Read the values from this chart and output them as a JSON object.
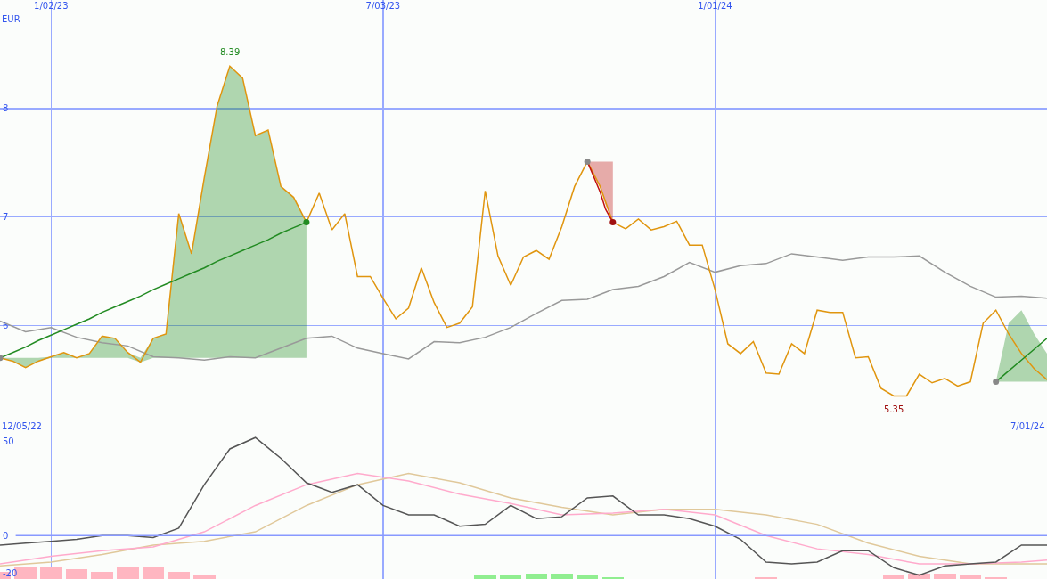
{
  "chart_data": [
    {
      "type": "line",
      "ylabel": "EUR",
      "xlim": [
        "2022-12-05",
        "2024-07-01"
      ],
      "ylim": [
        5.0,
        9.0
      ],
      "xticks": [
        {
          "value": "2023-01-02",
          "label": "1/02/23"
        },
        {
          "value": "2023-07-03",
          "label": "7/03/23"
        },
        {
          "value": "2024-01-01",
          "label": "1/01/24"
        }
      ],
      "yticks": [
        6,
        7,
        8
      ],
      "grid": true,
      "legend": false,
      "annotations": [
        {
          "text": "8.39",
          "x": "2023-04-10",
          "y": 8.39
        },
        {
          "text": "5.35",
          "x": "2024-04-08",
          "y": 5.35
        },
        "12/05/22",
        "7/01/24"
      ],
      "series": [
        {
          "color": "#999999",
          "x": [
            "2022-12-05",
            "2022-12-19",
            "2023-01-02",
            "2023-01-16",
            "2023-01-30",
            "2023-02-13",
            "2023-02-27",
            "2023-03-13",
            "2023-03-27",
            "2023-04-10",
            "2023-04-24",
            "2023-05-08",
            "2023-05-22",
            "2023-06-05",
            "2023-06-19",
            "2023-07-03",
            "2023-07-17",
            "2023-07-31",
            "2023-08-14",
            "2023-08-28",
            "2023-09-11",
            "2023-09-25",
            "2023-10-09",
            "2023-10-23",
            "2023-11-06",
            "2023-11-20",
            "2023-12-04",
            "2023-12-18",
            "2024-01-01",
            "2024-01-15",
            "2024-01-29",
            "2024-02-12",
            "2024-02-26",
            "2024-03-11",
            "2024-03-25",
            "2024-04-08",
            "2024-04-22",
            "2024-05-06",
            "2024-05-20",
            "2024-06-03",
            "2024-06-17",
            "2024-07-01"
          ],
          "values": [
            6.04,
            5.94,
            5.98,
            5.89,
            5.84,
            5.81,
            5.71,
            5.7,
            5.68,
            5.71,
            5.7,
            5.79,
            5.88,
            5.9,
            5.79,
            5.74,
            5.69,
            5.85,
            5.84,
            5.89,
            5.98,
            6.11,
            6.23,
            6.24,
            6.33,
            6.36,
            6.45,
            6.58,
            6.49,
            6.55,
            6.57,
            6.66,
            6.63,
            6.6,
            6.63,
            6.63,
            6.64,
            6.49,
            6.36,
            6.26,
            6.27,
            6.25
          ]
        },
        {
          "color": "#e0950e",
          "x": [
            "2022-12-05",
            "2022-12-12",
            "2022-12-19",
            "2022-12-26",
            "2023-01-02",
            "2023-01-09",
            "2023-01-16",
            "2023-01-23",
            "2023-01-30",
            "2023-02-06",
            "2023-02-13",
            "2023-02-20",
            "2023-02-27",
            "2023-03-06",
            "2023-03-13",
            "2023-03-20",
            "2023-03-27",
            "2023-04-03",
            "2023-04-10",
            "2023-04-17",
            "2023-04-24",
            "2023-05-01",
            "2023-05-08",
            "2023-05-15",
            "2023-05-22",
            "2023-05-29",
            "2023-06-05",
            "2023-06-12",
            "2023-06-19",
            "2023-06-26",
            "2023-07-03",
            "2023-07-10",
            "2023-07-17",
            "2023-07-24",
            "2023-07-31",
            "2023-08-07",
            "2023-08-14",
            "2023-08-21",
            "2023-08-28",
            "2023-09-04",
            "2023-09-11",
            "2023-09-18",
            "2023-09-25",
            "2023-10-02",
            "2023-10-09",
            "2023-10-16",
            "2023-10-23",
            "2023-10-30",
            "2023-11-06",
            "2023-11-13",
            "2023-11-20",
            "2023-11-27",
            "2023-12-04",
            "2023-12-11",
            "2023-12-18",
            "2023-12-25",
            "2024-01-01",
            "2024-01-08",
            "2024-01-15",
            "2024-01-22",
            "2024-01-29",
            "2024-02-05",
            "2024-02-12",
            "2024-02-19",
            "2024-02-26",
            "2024-03-04",
            "2024-03-11",
            "2024-03-18",
            "2024-03-25",
            "2024-04-01",
            "2024-04-08",
            "2024-04-15",
            "2024-04-22",
            "2024-04-29",
            "2024-05-06",
            "2024-05-13",
            "2024-05-20",
            "2024-05-27",
            "2024-06-03",
            "2024-06-10",
            "2024-06-17",
            "2024-06-24",
            "2024-07-01"
          ],
          "values": [
            5.7,
            5.67,
            5.61,
            5.67,
            5.71,
            5.75,
            5.7,
            5.74,
            5.9,
            5.88,
            5.75,
            5.66,
            5.88,
            5.92,
            7.03,
            6.66,
            7.36,
            8.02,
            8.39,
            8.28,
            7.75,
            7.8,
            7.28,
            7.18,
            6.95,
            7.22,
            6.88,
            7.03,
            6.45,
            6.45,
            6.25,
            6.06,
            6.16,
            6.53,
            6.21,
            5.98,
            6.02,
            6.17,
            7.24,
            6.64,
            6.37,
            6.63,
            6.69,
            6.61,
            6.91,
            7.28,
            7.51,
            7.28,
            6.95,
            6.89,
            6.98,
            6.88,
            6.91,
            6.96,
            6.74,
            6.74,
            6.33,
            5.83,
            5.74,
            5.85,
            5.56,
            5.55,
            5.83,
            5.74,
            6.14,
            6.12,
            6.12,
            5.7,
            5.71,
            5.42,
            5.35,
            5.35,
            5.55,
            5.47,
            5.51,
            5.44,
            5.48,
            6.02,
            6.14,
            5.92,
            5.74,
            5.6,
            5.5
          ]
        },
        {
          "color": "#228b22",
          "x": [
            "2022-12-05",
            "2022-12-12",
            "2022-12-19",
            "2022-12-26",
            "2023-01-02",
            "2023-01-09",
            "2023-01-16",
            "2023-01-23",
            "2023-01-30",
            "2023-02-06",
            "2023-02-13",
            "2023-02-20",
            "2023-02-27",
            "2023-03-06",
            "2023-03-13",
            "2023-03-20",
            "2023-03-27",
            "2023-04-03",
            "2023-04-10",
            "2023-04-17",
            "2023-04-24",
            "2023-05-01",
            "2023-05-08",
            "2023-05-15",
            "2023-05-22"
          ],
          "values": [
            5.7,
            5.75,
            5.8,
            5.86,
            5.91,
            5.96,
            6.01,
            6.06,
            6.12,
            6.17,
            6.22,
            6.27,
            6.33,
            6.38,
            6.43,
            6.48,
            6.53,
            6.59,
            6.64,
            6.69,
            6.74,
            6.79,
            6.85,
            6.9,
            6.95
          ],
          "lower": [
            5.7,
            5.67,
            5.61,
            5.67,
            5.7,
            5.7,
            5.7,
            5.7,
            5.7,
            5.7,
            5.7,
            5.66,
            5.7,
            5.7,
            5.7,
            5.7,
            5.7,
            5.7,
            5.7,
            5.7,
            5.7,
            5.7,
            5.7,
            5.7,
            5.7
          ],
          "upper": [
            5.7,
            5.7,
            5.7,
            5.7,
            5.71,
            5.75,
            5.7,
            5.74,
            5.9,
            5.88,
            5.75,
            5.7,
            5.88,
            5.92,
            7.03,
            6.66,
            7.36,
            8.02,
            8.39,
            8.28,
            7.75,
            7.8,
            7.28,
            7.18,
            6.95
          ]
        },
        {
          "color": "#c01010",
          "x": [
            "2023-10-23",
            "2023-10-26",
            "2023-10-30",
            "2023-11-02",
            "2023-11-06"
          ],
          "values": [
            7.51,
            7.39,
            7.23,
            7.07,
            6.95
          ],
          "lower": [
            7.51,
            7.41,
            7.28,
            7.11,
            6.95
          ],
          "upper": [
            7.51,
            7.51,
            7.51,
            7.51,
            7.51
          ]
        },
        {
          "color": "#228b22",
          "x": [
            "2024-06-03",
            "2024-06-10",
            "2024-06-17",
            "2024-06-24",
            "2024-07-01"
          ],
          "values": [
            5.48,
            5.58,
            5.68,
            5.78,
            5.88
          ],
          "lower": [
            5.48,
            5.48,
            5.48,
            5.48,
            5.48
          ],
          "upper": [
            5.48,
            6.02,
            6.14,
            5.92,
            5.74
          ]
        },
        {
          "type": "scatter",
          "marker": "circle",
          "x": [
            "2022-12-05",
            "2023-05-22",
            "2023-10-23",
            "2023-11-06",
            "2024-06-03"
          ],
          "values": [
            5.7,
            6.95,
            7.51,
            6.95,
            5.48
          ],
          "colors": [
            "#888888",
            "#228b22",
            "#888888",
            "#a01010",
            "#888888"
          ]
        }
      ]
    },
    {
      "type": "line",
      "xlim": [
        "2022-12-05",
        "2024-07-01"
      ],
      "ylim": [
        -23,
        54
      ],
      "xticks": [
        {
          "value": "2023-01-02",
          "label": null
        },
        {
          "value": "2023-07-03",
          "label": null
        },
        {
          "value": "2024-01-01",
          "label": null
        }
      ],
      "yticks": [
        -20,
        0,
        50
      ],
      "grid": "x",
      "legend": false,
      "tick_labels": "y",
      "ref_lines": [
        {
          "axis": "y",
          "value": 0,
          "color": "#8899ff"
        }
      ],
      "series": [
        {
          "type": "bar",
          "x": [
            "2022-12-05",
            "2022-12-19",
            "2023-01-02",
            "2023-01-16",
            "2023-01-30",
            "2023-02-13",
            "2023-02-27",
            "2023-03-13",
            "2023-03-27",
            "2023-08-28",
            "2023-09-11",
            "2023-09-25",
            "2023-10-09",
            "2023-10-23",
            "2023-11-06",
            "2024-01-29",
            "2024-04-08",
            "2024-04-22",
            "2024-05-06",
            "2024-05-20",
            "2024-06-03"
          ],
          "values": [
            4,
            6,
            6,
            5,
            4,
            6,
            6,
            4,
            2,
            2,
            2,
            3,
            3,
            2,
            1,
            1,
            2,
            3,
            3,
            2,
            1
          ],
          "base": [
            -23,
            -23,
            -23,
            -23,
            -23,
            -23,
            -23,
            -23,
            -23,
            -23,
            -23,
            -23,
            -23,
            -23,
            -23,
            -23,
            -23,
            -23,
            -23,
            -23,
            -23
          ],
          "colors": [
            "#ffb6c1",
            "#ffb6c1",
            "#ffb6c1",
            "#ffb6c1",
            "#ffb6c1",
            "#ffb6c1",
            "#ffb6c1",
            "#ffb6c1",
            "#ffb6c1",
            "#90ee90",
            "#90ee90",
            "#90ee90",
            "#90ee90",
            "#90ee90",
            "#90ee90",
            "#ffb6c1",
            "#ffb6c1",
            "#ffb6c1",
            "#ffb6c1",
            "#ffb6c1",
            "#ffb6c1"
          ]
        },
        {
          "color": "#e0c89a",
          "x": [
            "2022-12-05",
            "2023-01-02",
            "2023-01-30",
            "2023-02-27",
            "2023-03-27",
            "2023-04-24",
            "2023-05-22",
            "2023-06-19",
            "2023-07-17",
            "2023-08-14",
            "2023-09-11",
            "2023-10-09",
            "2023-11-06",
            "2023-12-04",
            "2024-01-01",
            "2024-01-29",
            "2024-02-26",
            "2024-03-25",
            "2024-04-22",
            "2024-05-20",
            "2024-06-17",
            "2024-07-01"
          ],
          "values": [
            -16,
            -14,
            -10,
            -5,
            -3,
            2,
            16,
            27,
            33,
            28,
            20,
            15,
            11,
            14,
            14,
            11,
            6,
            -4,
            -11,
            -15,
            -15,
            -15
          ]
        },
        {
          "color": "#ffaacc",
          "x": [
            "2022-12-05",
            "2023-01-02",
            "2023-01-30",
            "2023-02-27",
            "2023-03-27",
            "2023-04-24",
            "2023-05-22",
            "2023-06-19",
            "2023-07-17",
            "2023-08-14",
            "2023-09-11",
            "2023-10-09",
            "2023-11-06",
            "2023-12-04",
            "2024-01-01",
            "2024-01-29",
            "2024-02-26",
            "2024-03-25",
            "2024-04-22",
            "2024-05-20",
            "2024-06-17",
            "2024-07-01"
          ],
          "values": [
            -15,
            -11,
            -8,
            -6,
            2,
            16,
            27,
            33,
            29,
            22,
            17,
            11,
            12,
            14,
            11,
            0,
            -7,
            -10,
            -15,
            -15,
            -14,
            -13
          ]
        },
        {
          "color": "#555555",
          "x": [
            "2022-12-05",
            "2022-12-19",
            "2023-01-02",
            "2023-01-16",
            "2023-01-30",
            "2023-02-13",
            "2023-02-27",
            "2023-03-13",
            "2023-03-27",
            "2023-04-10",
            "2023-04-24",
            "2023-05-08",
            "2023-05-22",
            "2023-06-05",
            "2023-06-19",
            "2023-07-03",
            "2023-07-17",
            "2023-07-31",
            "2023-08-14",
            "2023-08-28",
            "2023-09-11",
            "2023-09-25",
            "2023-10-09",
            "2023-10-23",
            "2023-11-06",
            "2023-11-20",
            "2023-12-04",
            "2023-12-18",
            "2024-01-01",
            "2024-01-15",
            "2024-01-29",
            "2024-02-12",
            "2024-02-26",
            "2024-03-11",
            "2024-03-25",
            "2024-04-08",
            "2024-04-22",
            "2024-05-06",
            "2024-05-20",
            "2024-06-03",
            "2024-06-17",
            "2024-07-01"
          ],
          "values": [
            -5,
            -4,
            -3,
            -2,
            0,
            0,
            -1,
            4,
            27,
            46,
            52,
            41,
            28,
            23,
            27,
            16,
            11,
            11,
            5,
            6,
            16,
            9,
            10,
            20,
            21,
            11,
            11,
            9,
            5,
            -2,
            -14,
            -15,
            -14,
            -8,
            -8,
            -17,
            -21,
            -16,
            -15,
            -14,
            -5,
            -5
          ]
        }
      ]
    }
  ]
}
